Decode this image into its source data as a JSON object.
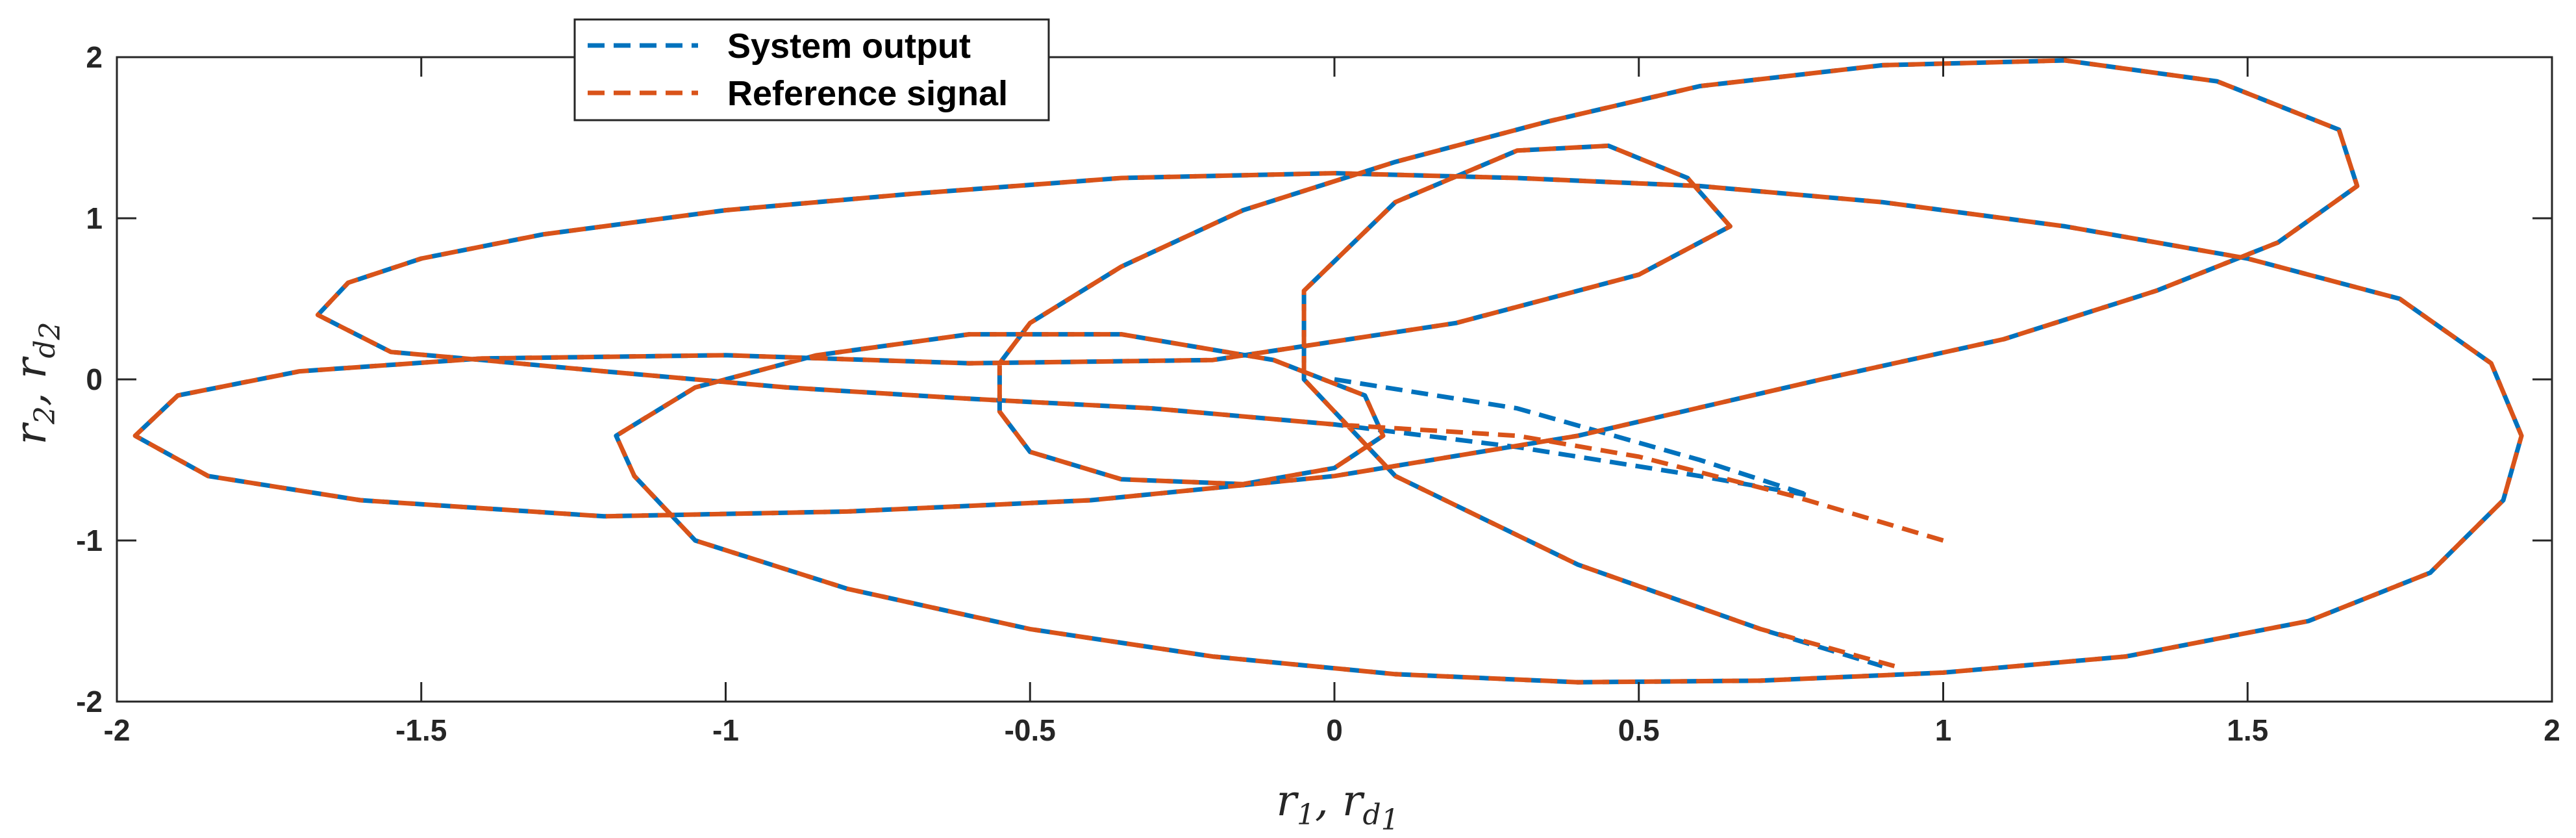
{
  "chart_data": {
    "type": "line",
    "title": "",
    "xlabel": "r1, rd1",
    "ylabel": "r2, rd2",
    "xlim": [
      -2,
      2
    ],
    "ylim": [
      -2,
      2
    ],
    "xticks": [
      -2,
      -1.5,
      -1,
      -0.5,
      0,
      0.5,
      1,
      1.5,
      2
    ],
    "xtick_labels": [
      "-2",
      "-1.5",
      "-1",
      "-0.5",
      "0",
      "0.5",
      "1",
      "1.5",
      "2"
    ],
    "yticks": [
      -2,
      -1,
      0,
      1,
      2
    ],
    "ytick_labels": [
      "-2",
      "-1",
      "0",
      "1",
      "2"
    ],
    "grid": false,
    "legend_position": "top-left",
    "series": [
      {
        "name": "System output",
        "color": "#0072BD",
        "line_style": "dashed",
        "points": [
          [
            0,
            0
          ],
          [
            0.3,
            -0.18
          ],
          [
            0.6,
            -0.5
          ],
          [
            0.78,
            -0.72
          ],
          [
            0.6,
            -0.6
          ],
          [
            0.3,
            -0.42
          ],
          [
            0,
            -0.28
          ],
          [
            -0.3,
            -0.18
          ],
          [
            -0.6,
            -0.12
          ],
          [
            -0.9,
            -0.05
          ],
          [
            -1.2,
            0.05
          ],
          [
            -1.4,
            0.12
          ],
          [
            -1.55,
            0.17
          ],
          [
            -1.67,
            0.4
          ],
          [
            -1.62,
            0.6
          ],
          [
            -1.5,
            0.75
          ],
          [
            -1.3,
            0.9
          ],
          [
            -1.0,
            1.05
          ],
          [
            -0.7,
            1.15
          ],
          [
            -0.35,
            1.25
          ],
          [
            0,
            1.28
          ],
          [
            0.3,
            1.25
          ],
          [
            0.6,
            1.2
          ],
          [
            0.9,
            1.1
          ],
          [
            1.2,
            0.95
          ],
          [
            1.5,
            0.75
          ],
          [
            1.75,
            0.5
          ],
          [
            1.9,
            0.1
          ],
          [
            1.95,
            -0.35
          ],
          [
            1.92,
            -0.75
          ],
          [
            1.8,
            -1.2
          ],
          [
            1.6,
            -1.5
          ],
          [
            1.3,
            -1.72
          ],
          [
            1.0,
            -1.82
          ],
          [
            0.7,
            -1.87
          ],
          [
            0.4,
            -1.88
          ],
          [
            0.1,
            -1.83
          ],
          [
            -0.2,
            -1.72
          ],
          [
            -0.5,
            -1.55
          ],
          [
            -0.8,
            -1.3
          ],
          [
            -1.05,
            -1.0
          ],
          [
            -1.15,
            -0.6
          ],
          [
            -1.18,
            -0.35
          ],
          [
            -1.05,
            -0.05
          ],
          [
            -0.85,
            0.15
          ],
          [
            -0.6,
            0.28
          ],
          [
            -0.35,
            0.28
          ],
          [
            -0.1,
            0.12
          ],
          [
            0.05,
            -0.1
          ],
          [
            0.08,
            -0.35
          ],
          [
            0,
            -0.55
          ],
          [
            -0.15,
            -0.65
          ],
          [
            -0.35,
            -0.62
          ],
          [
            -0.5,
            -0.45
          ],
          [
            -0.55,
            -0.2
          ],
          [
            -0.55,
            0.1
          ],
          [
            -0.5,
            0.35
          ],
          [
            -0.35,
            0.7
          ],
          [
            -0.15,
            1.05
          ],
          [
            0.1,
            1.35
          ],
          [
            0.35,
            1.6
          ],
          [
            0.6,
            1.82
          ],
          [
            0.9,
            1.95
          ],
          [
            1.2,
            1.98
          ],
          [
            1.45,
            1.85
          ],
          [
            1.65,
            1.55
          ],
          [
            1.68,
            1.2
          ],
          [
            1.55,
            0.85
          ],
          [
            1.35,
            0.55
          ],
          [
            1.1,
            0.25
          ],
          [
            0.8,
            0
          ],
          [
            0.4,
            -0.35
          ],
          [
            0,
            -0.6
          ],
          [
            -0.4,
            -0.75
          ],
          [
            -0.8,
            -0.82
          ],
          [
            -1.2,
            -0.85
          ],
          [
            -1.6,
            -0.75
          ],
          [
            -1.85,
            -0.6
          ],
          [
            -1.97,
            -0.35
          ],
          [
            -1.9,
            -0.1
          ],
          [
            -1.7,
            0.05
          ],
          [
            -1.4,
            0.13
          ],
          [
            -1.0,
            0.15
          ],
          [
            -0.6,
            0.1
          ],
          [
            -0.2,
            0.12
          ],
          [
            0.2,
            0.35
          ],
          [
            0.5,
            0.65
          ],
          [
            0.65,
            0.95
          ],
          [
            0.58,
            1.25
          ],
          [
            0.45,
            1.45
          ],
          [
            0.3,
            1.42
          ],
          [
            0.1,
            1.1
          ],
          [
            -0.05,
            0.55
          ],
          [
            -0.05,
            0
          ],
          [
            0.1,
            -0.6
          ],
          [
            0.4,
            -1.15
          ],
          [
            0.7,
            -1.55
          ],
          [
            0.9,
            -1.78
          ]
        ]
      },
      {
        "name": "Reference signal",
        "color": "#D95319",
        "line_style": "dashed",
        "points": [
          [
            1,
            -1
          ],
          [
            0.75,
            -0.72
          ],
          [
            0.5,
            -0.48
          ],
          [
            0.3,
            -0.35
          ],
          [
            0,
            -0.28
          ],
          [
            -0.3,
            -0.18
          ],
          [
            -0.6,
            -0.12
          ],
          [
            -0.9,
            -0.05
          ],
          [
            -1.2,
            0.05
          ],
          [
            -1.4,
            0.12
          ],
          [
            -1.55,
            0.17
          ],
          [
            -1.67,
            0.4
          ],
          [
            -1.62,
            0.6
          ],
          [
            -1.5,
            0.75
          ],
          [
            -1.3,
            0.9
          ],
          [
            -1.0,
            1.05
          ],
          [
            -0.7,
            1.15
          ],
          [
            -0.35,
            1.25
          ],
          [
            0,
            1.28
          ],
          [
            0.3,
            1.25
          ],
          [
            0.6,
            1.2
          ],
          [
            0.9,
            1.1
          ],
          [
            1.2,
            0.95
          ],
          [
            1.5,
            0.75
          ],
          [
            1.75,
            0.5
          ],
          [
            1.9,
            0.1
          ],
          [
            1.95,
            -0.35
          ],
          [
            1.92,
            -0.75
          ],
          [
            1.8,
            -1.2
          ],
          [
            1.6,
            -1.5
          ],
          [
            1.3,
            -1.72
          ],
          [
            1.0,
            -1.82
          ],
          [
            0.7,
            -1.87
          ],
          [
            0.4,
            -1.88
          ],
          [
            0.1,
            -1.83
          ],
          [
            -0.2,
            -1.72
          ],
          [
            -0.5,
            -1.55
          ],
          [
            -0.8,
            -1.3
          ],
          [
            -1.05,
            -1.0
          ],
          [
            -1.15,
            -0.6
          ],
          [
            -1.18,
            -0.35
          ],
          [
            -1.05,
            -0.05
          ],
          [
            -0.85,
            0.15
          ],
          [
            -0.6,
            0.28
          ],
          [
            -0.35,
            0.28
          ],
          [
            -0.1,
            0.12
          ],
          [
            0.05,
            -0.1
          ],
          [
            0.08,
            -0.35
          ],
          [
            0,
            -0.55
          ],
          [
            -0.15,
            -0.65
          ],
          [
            -0.35,
            -0.62
          ],
          [
            -0.5,
            -0.45
          ],
          [
            -0.55,
            -0.2
          ],
          [
            -0.55,
            0.1
          ],
          [
            -0.5,
            0.35
          ],
          [
            -0.35,
            0.7
          ],
          [
            -0.15,
            1.05
          ],
          [
            0.1,
            1.35
          ],
          [
            0.35,
            1.6
          ],
          [
            0.6,
            1.82
          ],
          [
            0.9,
            1.95
          ],
          [
            1.2,
            1.98
          ],
          [
            1.45,
            1.85
          ],
          [
            1.65,
            1.55
          ],
          [
            1.68,
            1.2
          ],
          [
            1.55,
            0.85
          ],
          [
            1.35,
            0.55
          ],
          [
            1.1,
            0.25
          ],
          [
            0.8,
            0
          ],
          [
            0.4,
            -0.35
          ],
          [
            0,
            -0.6
          ],
          [
            -0.4,
            -0.75
          ],
          [
            -0.8,
            -0.82
          ],
          [
            -1.2,
            -0.85
          ],
          [
            -1.6,
            -0.75
          ],
          [
            -1.85,
            -0.6
          ],
          [
            -1.97,
            -0.35
          ],
          [
            -1.9,
            -0.1
          ],
          [
            -1.7,
            0.05
          ],
          [
            -1.4,
            0.13
          ],
          [
            -1.0,
            0.15
          ],
          [
            -0.6,
            0.1
          ],
          [
            -0.2,
            0.12
          ],
          [
            0.2,
            0.35
          ],
          [
            0.5,
            0.65
          ],
          [
            0.65,
            0.95
          ],
          [
            0.58,
            1.25
          ],
          [
            0.45,
            1.45
          ],
          [
            0.3,
            1.42
          ],
          [
            0.1,
            1.1
          ],
          [
            -0.05,
            0.55
          ],
          [
            -0.05,
            0
          ],
          [
            0.1,
            -0.6
          ],
          [
            0.4,
            -1.15
          ],
          [
            0.7,
            -1.55
          ],
          [
            0.92,
            -1.78
          ]
        ]
      }
    ]
  }
}
